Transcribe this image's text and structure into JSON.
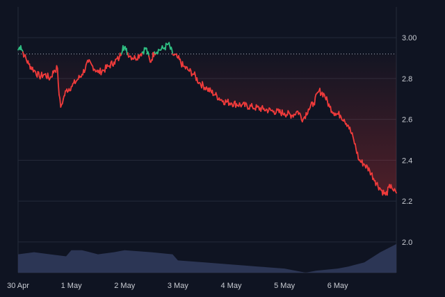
{
  "chart_data": {
    "type": "area",
    "title": "",
    "xlabel": "",
    "ylabel": "",
    "ylim": [
      1.85,
      3.15
    ],
    "yticks": [
      "3.00",
      "2.8",
      "2.6",
      "2.4",
      "2.2",
      "2.0"
    ],
    "ytick_values": [
      3.0,
      2.8,
      2.6,
      2.4,
      2.2,
      2.0
    ],
    "xticks": [
      "30 Apr",
      "1 May",
      "2 May",
      "3 May",
      "4 May",
      "5 May",
      "6 May"
    ],
    "x_day_range": [
      0,
      7.1
    ],
    "baseline": 2.92,
    "grid": true,
    "colors": {
      "background": "#0f1422",
      "grid": "#252b3b",
      "above_baseline": "#2fbf83",
      "below_baseline": "#ef3b3b",
      "volume": "#2e3858",
      "baseline_dots": "#aeb4c2"
    },
    "series": [
      {
        "x": [
          0,
          0.05,
          0.12,
          0.2,
          0.3,
          0.4,
          0.5,
          0.6,
          0.68,
          0.74,
          0.77,
          0.8,
          0.85,
          0.9,
          1.0,
          1.1,
          1.2,
          1.32,
          1.4,
          1.5,
          1.6,
          1.7,
          1.8,
          1.9,
          1.97,
          2.02,
          2.1,
          2.2,
          2.3,
          2.4,
          2.48,
          2.56,
          2.65,
          2.75,
          2.82,
          2.9,
          3.0,
          3.1,
          3.2,
          3.3,
          3.4,
          3.55,
          3.7,
          3.85,
          4.0,
          4.2,
          4.4,
          4.6,
          4.8,
          5.0,
          5.15,
          5.25,
          5.35,
          5.45,
          5.55,
          5.65,
          5.75,
          5.85,
          5.95,
          6.05,
          6.12,
          6.2,
          6.3,
          6.4,
          6.5,
          6.6,
          6.7,
          6.8,
          6.9,
          7.0,
          7.05,
          7.1
        ],
        "values": [
          2.94,
          2.96,
          2.91,
          2.87,
          2.84,
          2.81,
          2.82,
          2.8,
          2.84,
          2.85,
          2.72,
          2.66,
          2.7,
          2.74,
          2.76,
          2.79,
          2.82,
          2.88,
          2.86,
          2.83,
          2.84,
          2.86,
          2.88,
          2.9,
          2.96,
          2.94,
          2.91,
          2.9,
          2.92,
          2.95,
          2.88,
          2.93,
          2.94,
          2.95,
          2.97,
          2.92,
          2.9,
          2.86,
          2.84,
          2.82,
          2.78,
          2.75,
          2.72,
          2.69,
          2.68,
          2.67,
          2.66,
          2.65,
          2.64,
          2.63,
          2.62,
          2.64,
          2.6,
          2.65,
          2.68,
          2.74,
          2.72,
          2.66,
          2.63,
          2.62,
          2.6,
          2.57,
          2.5,
          2.4,
          2.38,
          2.35,
          2.3,
          2.26,
          2.23,
          2.28,
          2.25,
          2.24
        ]
      }
    ],
    "volume": {
      "x": [
        0,
        0.3,
        0.6,
        0.9,
        1.0,
        1.2,
        1.5,
        1.8,
        2.0,
        2.5,
        2.9,
        3.0,
        3.5,
        4.0,
        4.5,
        5.0,
        5.4,
        5.6,
        6.0,
        6.2,
        6.5,
        6.8,
        7.1
      ],
      "values": [
        1.94,
        1.95,
        1.94,
        1.93,
        1.96,
        1.96,
        1.94,
        1.95,
        1.96,
        1.95,
        1.94,
        1.91,
        1.9,
        1.89,
        1.88,
        1.87,
        1.85,
        1.86,
        1.87,
        1.88,
        1.9,
        1.95,
        1.99
      ]
    }
  }
}
